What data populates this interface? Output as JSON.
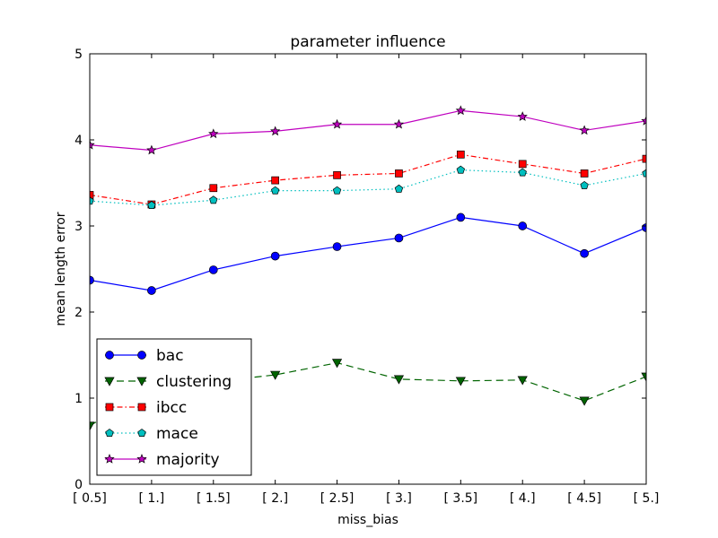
{
  "chart_data": {
    "type": "line",
    "title": "parameter influence",
    "xlabel": "miss_bias",
    "ylabel": "mean length error",
    "categories": [
      "[ 0.5]",
      "[ 1.]",
      "[ 1.5]",
      "[ 2.]",
      "[ 2.5]",
      "[ 3.]",
      "[ 3.5]",
      "[ 4.]",
      "[ 4.5]",
      "[ 5.]"
    ],
    "ylim": [
      0,
      5
    ],
    "yticks": [
      "0",
      "1",
      "2",
      "3",
      "4",
      "5"
    ],
    "grid": false,
    "legend_position": "lower-left",
    "series": [
      {
        "name": "bac",
        "color": "#0000ff",
        "marker": "circle",
        "linestyle": "solid",
        "values": [
          2.37,
          2.25,
          2.49,
          2.65,
          2.76,
          2.86,
          3.1,
          3.0,
          2.68,
          2.98
        ]
      },
      {
        "name": "clustering",
        "color": "#006400",
        "marker": "triangle-down",
        "linestyle": "dashed",
        "values": [
          0.68,
          1.09,
          1.19,
          1.27,
          1.41,
          1.22,
          1.2,
          1.21,
          0.97,
          1.25
        ]
      },
      {
        "name": "ibcc",
        "color": "#ff0000",
        "marker": "square",
        "linestyle": "dashdot",
        "values": [
          3.36,
          3.25,
          3.44,
          3.53,
          3.59,
          3.61,
          3.83,
          3.72,
          3.61,
          3.78
        ]
      },
      {
        "name": "mace",
        "color": "#00bfbf",
        "marker": "pentagon",
        "linestyle": "dotted",
        "values": [
          3.29,
          3.24,
          3.3,
          3.41,
          3.41,
          3.43,
          3.65,
          3.62,
          3.47,
          3.61
        ]
      },
      {
        "name": "majority",
        "color": "#bf00bf",
        "marker": "star",
        "linestyle": "solid",
        "values": [
          3.94,
          3.88,
          4.07,
          4.1,
          4.18,
          4.18,
          4.34,
          4.27,
          4.11,
          4.22
        ]
      }
    ]
  }
}
